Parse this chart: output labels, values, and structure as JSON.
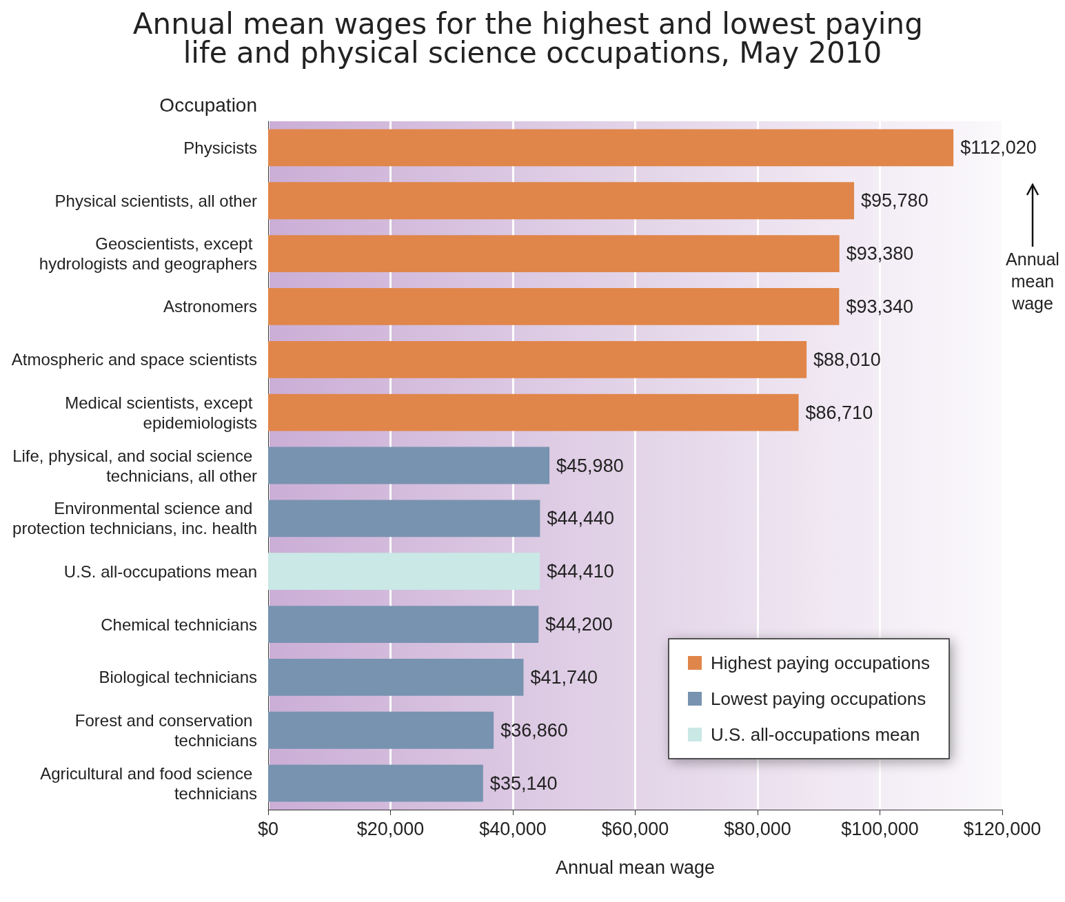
{
  "chart_data": {
    "type": "bar",
    "orientation": "horizontal",
    "stacked": true,
    "title": "Annual mean wages for the highest and lowest paying life and physical science occupations, May 2010",
    "xlabel": "Annual mean wage",
    "ylabel": "Occupation",
    "categories": [
      "Physicists",
      "Physical scientists, all other",
      "Geoscientists, except hydrologists and geographers",
      "Astronomers",
      "Atmospheric and space scientists",
      "Medical scientists, except epidemiologists",
      "Life, physical, and social science technicians, all other",
      "Environmental science and protection technicians, inc. health",
      "U.S. all-occupations mean",
      "Chemical technicians",
      "Biological technicians",
      "Forest and conservation technicians",
      "Agricultural and food science technicians"
    ],
    "series": [
      {
        "name": "Highest paying occupations",
        "color": "#e0864a",
        "values": [
          112020,
          95780,
          93380,
          93340,
          88010,
          86710,
          null,
          null,
          null,
          null,
          null,
          null,
          null
        ]
      },
      {
        "name": "Lowest paying occupations",
        "color": "#7793b0",
        "values": [
          null,
          null,
          null,
          null,
          null,
          null,
          45980,
          44440,
          null,
          44200,
          41740,
          36860,
          35140
        ]
      },
      {
        "name": "U.S. all-occupations mean",
        "color": "#c9e8e6",
        "values": [
          null,
          null,
          null,
          null,
          null,
          null,
          null,
          null,
          44410,
          null,
          null,
          null,
          null
        ]
      }
    ],
    "value_labels": [
      "$112,020",
      "$95,780",
      "$93,380",
      "$93,340",
      "$88,010",
      "$86,710",
      "$45,980",
      "$44,440",
      "$44,410",
      "$44,200",
      "$41,740",
      "$36,860",
      "$35,140"
    ],
    "xlim": [
      0,
      120000
    ],
    "xticks": [
      {
        "value": 0,
        "label": "$0"
      },
      {
        "value": 20000,
        "label": "$20,000"
      },
      {
        "value": 40000,
        "label": "$40,000"
      },
      {
        "value": 60000,
        "label": "$60,000"
      },
      {
        "value": 80000,
        "label": "$80,000"
      },
      {
        "value": 100000,
        "label": "$100,000"
      },
      {
        "value": 120000,
        "label": "$120,000"
      }
    ],
    "grid": "x",
    "legend": "bottom right",
    "annotations": [
      "Annual mean wage"
    ]
  }
}
